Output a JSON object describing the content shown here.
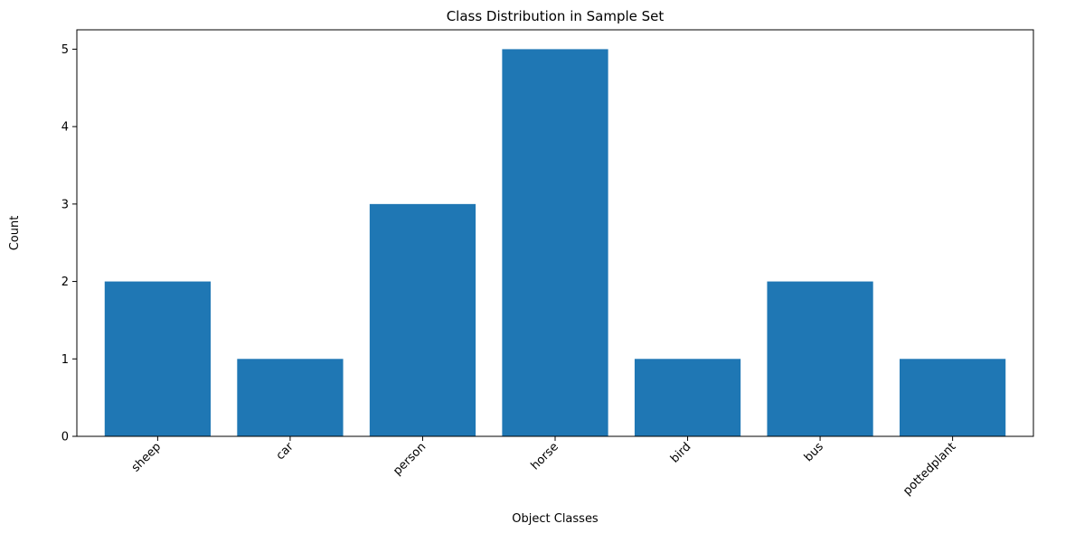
{
  "chart_data": {
    "type": "bar",
    "title": "Class Distribution in Sample Set",
    "xlabel": "Object Classes",
    "ylabel": "Count",
    "categories": [
      "sheep",
      "car",
      "person",
      "horse",
      "bird",
      "bus",
      "pottedplant"
    ],
    "values": [
      2,
      1,
      3,
      5,
      1,
      2,
      1
    ],
    "ylim": [
      0,
      5.25
    ],
    "yticks": [
      0,
      1,
      2,
      3,
      4,
      5
    ],
    "grid": false,
    "bar_color": "#1f77b4"
  }
}
